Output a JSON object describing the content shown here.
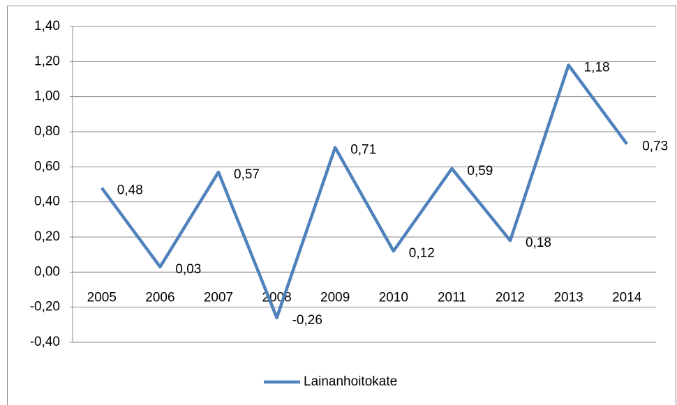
{
  "chart_data": {
    "type": "line",
    "categories": [
      "2005",
      "2006",
      "2007",
      "2008",
      "2009",
      "2010",
      "2011",
      "2012",
      "2013",
      "2014"
    ],
    "series": [
      {
        "name": "Lainanhoitokate",
        "color": "#4f81bd",
        "values": [
          0.48,
          0.03,
          0.57,
          -0.26,
          0.71,
          0.12,
          0.59,
          0.18,
          1.18,
          0.73
        ],
        "value_labels": [
          "0,48",
          "0,03",
          "0,57",
          "-0,26",
          "0,71",
          "0,12",
          "0,59",
          "0,18",
          "1,18",
          "0,73"
        ]
      }
    ],
    "ylim": [
      -0.4,
      1.4
    ],
    "yticks": [
      {
        "value": -0.4,
        "label": "-0,40"
      },
      {
        "value": -0.2,
        "label": "-0,20"
      },
      {
        "value": 0,
        "label": "0,00"
      },
      {
        "value": 0.2,
        "label": "0,20"
      },
      {
        "value": 0.4,
        "label": "0,40"
      },
      {
        "value": 0.6,
        "label": "0,60"
      },
      {
        "value": 0.8,
        "label": "0,80"
      },
      {
        "value": 1.0,
        "label": "1,00"
      },
      {
        "value": 1.2,
        "label": "1,20"
      },
      {
        "value": 1.4,
        "label": "1,40"
      }
    ],
    "grid": true,
    "legend": "bottom"
  }
}
